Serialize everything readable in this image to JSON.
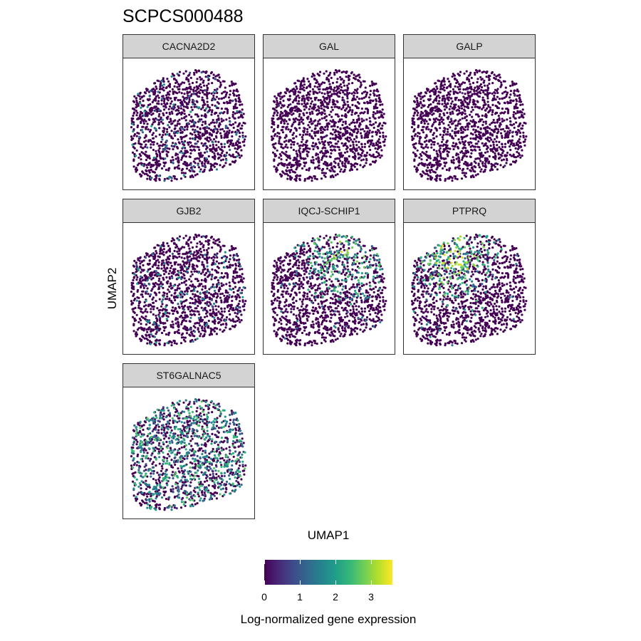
{
  "chart_data": {
    "type": "scatter",
    "title": "SCPCS000488",
    "xlabel": "UMAP1",
    "ylabel": "UMAP2",
    "facets": [
      {
        "name": "CACNA2D2",
        "profile": "low-scattered"
      },
      {
        "name": "GAL",
        "profile": "none"
      },
      {
        "name": "GALP",
        "profile": "none"
      },
      {
        "name": "GJB2",
        "profile": "low-scattered"
      },
      {
        "name": "IQCJ-SCHIP1",
        "profile": "upper-right-high"
      },
      {
        "name": "PTPRQ",
        "profile": "upper-left-high"
      },
      {
        "name": "ST6GALNAC5",
        "profile": "broad-moderate"
      }
    ],
    "colorbar": {
      "title": "Log-normalized gene expression",
      "range": [
        0,
        3.6
      ],
      "ticks": [
        0,
        1,
        2,
        3
      ],
      "palette": [
        "#440154",
        "#482878",
        "#3e4a89",
        "#31688e",
        "#26828e",
        "#1f9e89",
        "#35b779",
        "#6ece58",
        "#b5de2b",
        "#fde725"
      ]
    },
    "grid": false,
    "legend_position": "bottom"
  }
}
